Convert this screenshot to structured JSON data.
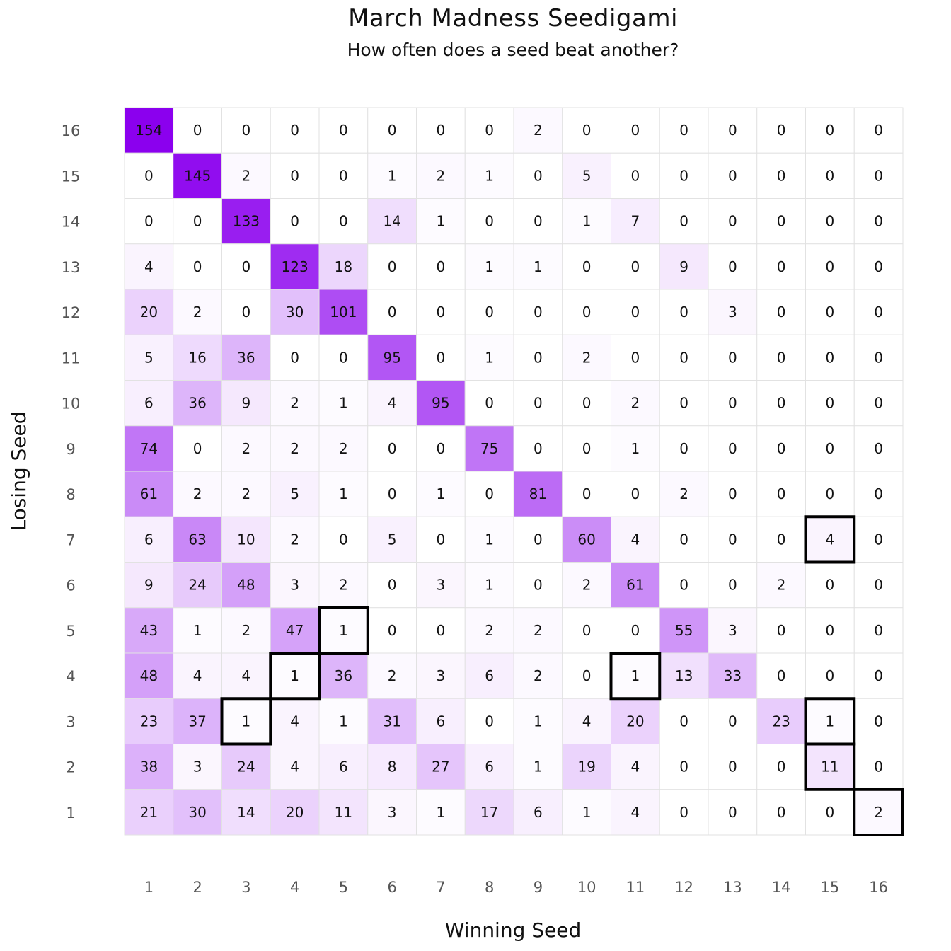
{
  "chart_data": {
    "type": "heatmap",
    "title": "March Madness Seedigami",
    "subtitle": "How often does a seed beat another?",
    "xlabel": "Winning Seed",
    "ylabel": "Losing Seed",
    "x_categories": [
      "1",
      "2",
      "3",
      "4",
      "5",
      "6",
      "7",
      "8",
      "9",
      "10",
      "11",
      "12",
      "13",
      "14",
      "15",
      "16"
    ],
    "y_categories": [
      "16",
      "15",
      "14",
      "13",
      "12",
      "11",
      "10",
      "9",
      "8",
      "7",
      "6",
      "5",
      "4",
      "3",
      "2",
      "1"
    ],
    "values": [
      [
        154,
        0,
        0,
        0,
        0,
        0,
        0,
        0,
        2,
        0,
        0,
        0,
        0,
        0,
        0,
        0
      ],
      [
        0,
        145,
        2,
        0,
        0,
        1,
        2,
        1,
        0,
        5,
        0,
        0,
        0,
        0,
        0,
        0
      ],
      [
        0,
        0,
        133,
        0,
        0,
        14,
        1,
        0,
        0,
        1,
        7,
        0,
        0,
        0,
        0,
        0
      ],
      [
        4,
        0,
        0,
        123,
        18,
        0,
        0,
        1,
        1,
        0,
        0,
        9,
        0,
        0,
        0,
        0
      ],
      [
        20,
        2,
        0,
        30,
        101,
        0,
        0,
        0,
        0,
        0,
        0,
        0,
        3,
        0,
        0,
        0
      ],
      [
        5,
        16,
        36,
        0,
        0,
        95,
        0,
        1,
        0,
        2,
        0,
        0,
        0,
        0,
        0,
        0
      ],
      [
        6,
        36,
        9,
        2,
        1,
        4,
        95,
        0,
        0,
        0,
        2,
        0,
        0,
        0,
        0,
        0
      ],
      [
        74,
        0,
        2,
        2,
        2,
        0,
        0,
        75,
        0,
        0,
        1,
        0,
        0,
        0,
        0,
        0
      ],
      [
        61,
        2,
        2,
        5,
        1,
        0,
        1,
        0,
        81,
        0,
        0,
        2,
        0,
        0,
        0,
        0
      ],
      [
        6,
        63,
        10,
        2,
        0,
        5,
        0,
        1,
        0,
        60,
        4,
        0,
        0,
        0,
        4,
        0
      ],
      [
        9,
        24,
        48,
        3,
        2,
        0,
        3,
        1,
        0,
        2,
        61,
        0,
        0,
        2,
        0,
        0
      ],
      [
        43,
        1,
        2,
        47,
        1,
        0,
        0,
        2,
        2,
        0,
        0,
        55,
        3,
        0,
        0,
        0
      ],
      [
        48,
        4,
        4,
        1,
        36,
        2,
        3,
        6,
        2,
        0,
        1,
        13,
        33,
        0,
        0,
        0
      ],
      [
        23,
        37,
        1,
        4,
        1,
        31,
        6,
        0,
        1,
        4,
        20,
        0,
        0,
        23,
        1,
        0
      ],
      [
        38,
        3,
        24,
        4,
        6,
        8,
        27,
        6,
        1,
        19,
        4,
        0,
        0,
        0,
        11,
        0
      ],
      [
        21,
        30,
        14,
        20,
        11,
        3,
        1,
        17,
        6,
        1,
        4,
        0,
        0,
        0,
        0,
        2
      ]
    ],
    "highlighted_cells": [
      {
        "winning_seed": "15",
        "losing_seed": "7"
      },
      {
        "winning_seed": "5",
        "losing_seed": "5"
      },
      {
        "winning_seed": "4",
        "losing_seed": "4"
      },
      {
        "winning_seed": "11",
        "losing_seed": "4"
      },
      {
        "winning_seed": "3",
        "losing_seed": "3"
      },
      {
        "winning_seed": "15",
        "losing_seed": "3"
      },
      {
        "winning_seed": "15",
        "losing_seed": "2"
      },
      {
        "winning_seed": "16",
        "losing_seed": "1"
      }
    ],
    "color_low": "#ffffff",
    "color_high": "#8b00ee",
    "value_range": [
      0,
      154
    ],
    "grid": true,
    "grid_color": "#e2e2e2",
    "highlight_color": "#000000"
  }
}
